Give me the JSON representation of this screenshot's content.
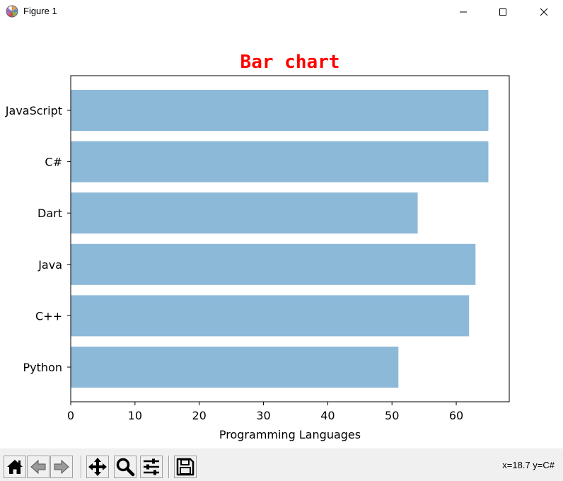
{
  "window": {
    "title": "Figure 1"
  },
  "toolbar": {
    "buttons": [
      "home-icon",
      "back-icon",
      "forward-icon",
      "pan-icon",
      "zoom-icon",
      "configure-subplots-icon",
      "save-icon"
    ],
    "status": "x=18.7 y=C#"
  },
  "chart_data": {
    "type": "bar",
    "orientation": "horizontal",
    "title": "Bar chart",
    "title_color": "#ff0000",
    "xlabel": "Programming Languages",
    "ylabel": "",
    "categories": [
      "Python",
      "C++",
      "Java",
      "Dart",
      "C#",
      "JavaScript"
    ],
    "values": [
      51,
      62,
      63,
      54,
      65,
      65
    ],
    "bar_color": "#8db9d9",
    "xlim": [
      0,
      68.25
    ],
    "xticks": [
      0,
      10,
      20,
      30,
      40,
      50,
      60
    ],
    "grid": false
  }
}
